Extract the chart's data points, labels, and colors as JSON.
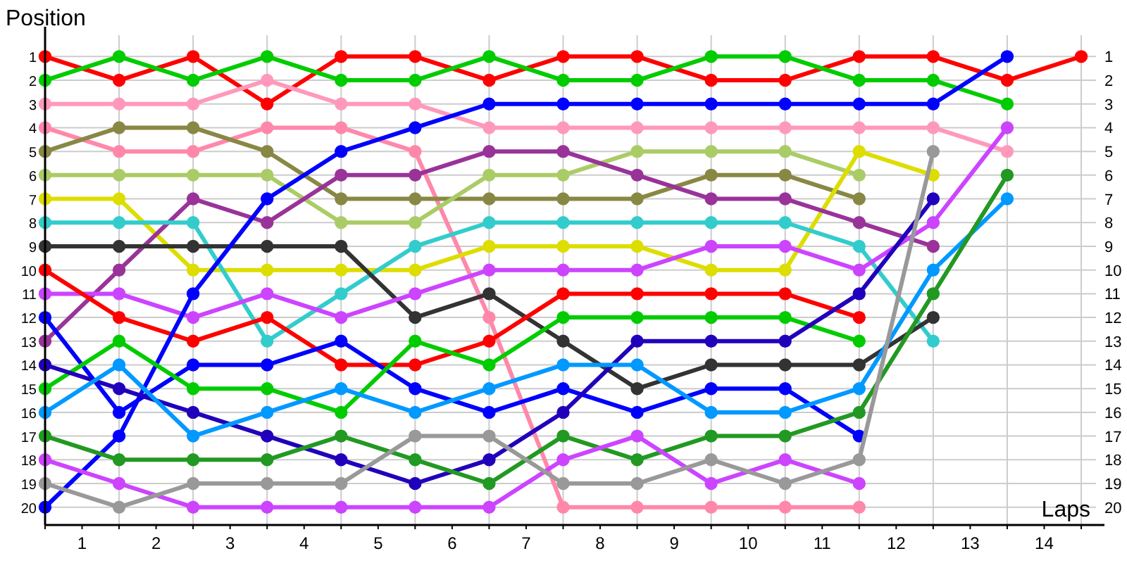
{
  "chart_data": {
    "type": "line",
    "ylabel": "Position",
    "xlabel": "Laps",
    "x": [
      0,
      1,
      2,
      3,
      4,
      5,
      6,
      7,
      8,
      9,
      10,
      11,
      12,
      13,
      14
    ],
    "xlim": [
      0,
      14.2
    ],
    "xticks": [
      {
        "value": 0,
        "label": null
      },
      {
        "value": 0.5,
        "label": "1"
      },
      {
        "value": 1,
        "label": null
      },
      {
        "value": 1.5,
        "label": "2"
      },
      {
        "value": 2,
        "label": null
      },
      {
        "value": 2.5,
        "label": "3"
      },
      {
        "value": 3,
        "label": null
      },
      {
        "value": 3.5,
        "label": "4"
      },
      {
        "value": 4,
        "label": null
      },
      {
        "value": 4.5,
        "label": "5"
      },
      {
        "value": 5,
        "label": null
      },
      {
        "value": 5.5,
        "label": "6"
      },
      {
        "value": 6,
        "label": null
      },
      {
        "value": 6.5,
        "label": "7"
      },
      {
        "value": 7,
        "label": null
      },
      {
        "value": 7.5,
        "label": "8"
      },
      {
        "value": 8,
        "label": null
      },
      {
        "value": 8.5,
        "label": "9"
      },
      {
        "value": 9,
        "label": null
      },
      {
        "value": 9.5,
        "label": "10"
      },
      {
        "value": 10,
        "label": null
      },
      {
        "value": 10.5,
        "label": "11"
      },
      {
        "value": 11,
        "label": null
      },
      {
        "value": 11.5,
        "label": "12"
      },
      {
        "value": 12,
        "label": null
      },
      {
        "value": 12.5,
        "label": "13"
      },
      {
        "value": 13,
        "label": null
      },
      {
        "value": 13.5,
        "label": "14"
      },
      {
        "value": 14,
        "label": null
      }
    ],
    "ylim": [
      20.75,
      0.1
    ],
    "yticks": [
      1,
      2,
      3,
      4,
      5,
      6,
      7,
      8,
      9,
      10,
      11,
      12,
      13,
      14,
      15,
      16,
      17,
      18,
      19,
      20
    ],
    "y2lim": [
      20.75,
      0.1
    ],
    "y2ticks": [
      1,
      2,
      3,
      4,
      5,
      6,
      7,
      8,
      9,
      10,
      11,
      12,
      13,
      14,
      15,
      16,
      17,
      18,
      19,
      20
    ],
    "grid": true,
    "marker": "circle",
    "line_style": "solid",
    "series": [
      {
        "color": "#ff0000",
        "values": [
          1,
          2,
          1,
          3,
          1,
          1,
          2,
          1,
          1,
          2,
          2,
          1,
          1,
          2,
          1
        ]
      },
      {
        "color": "#00cc00",
        "values": [
          2,
          1,
          2,
          1,
          2,
          2,
          1,
          2,
          2,
          1,
          1,
          2,
          2,
          3,
          null
        ]
      },
      {
        "color": "#ff99bb",
        "values": [
          3,
          3,
          3,
          2,
          3,
          3,
          4,
          4,
          4,
          4,
          4,
          4,
          4,
          5,
          null
        ]
      },
      {
        "color": "#ff88aa",
        "values": [
          4,
          5,
          5,
          4,
          4,
          5,
          12,
          20,
          20,
          20,
          20,
          20,
          null,
          null,
          null
        ]
      },
      {
        "color": "#888844",
        "values": [
          5,
          4,
          4,
          5,
          7,
          7,
          7,
          7,
          7,
          6,
          6,
          7,
          null,
          null,
          null
        ]
      },
      {
        "color": "#aacc66",
        "values": [
          6,
          6,
          6,
          6,
          8,
          8,
          6,
          6,
          5,
          5,
          5,
          6,
          null,
          null,
          null
        ]
      },
      {
        "color": "#dddd00",
        "values": [
          7,
          7,
          10,
          10,
          10,
          10,
          9,
          9,
          9,
          10,
          10,
          5,
          6,
          null,
          null
        ]
      },
      {
        "color": "#993399",
        "values": [
          13,
          10,
          7,
          8,
          6,
          6,
          5,
          5,
          6,
          7,
          7,
          8,
          9,
          null,
          null
        ]
      },
      {
        "color": "#33cccc",
        "values": [
          8,
          8,
          8,
          13,
          11,
          9,
          8,
          8,
          8,
          8,
          8,
          9,
          13,
          null,
          null
        ]
      },
      {
        "color": "#333333",
        "values": [
          9,
          9,
          9,
          9,
          9,
          12,
          11,
          13,
          15,
          14,
          14,
          14,
          12,
          null,
          null
        ]
      },
      {
        "color": "#cc44ff",
        "values": [
          11,
          11,
          12,
          11,
          12,
          11,
          10,
          10,
          10,
          9,
          9,
          10,
          8,
          4,
          null
        ]
      },
      {
        "color": "#ff0000",
        "values": [
          10,
          12,
          13,
          12,
          14,
          14,
          13,
          11,
          11,
          11,
          11,
          12,
          null,
          null,
          null
        ]
      },
      {
        "color": "#0000ff",
        "values": [
          20,
          17,
          11,
          7,
          5,
          4,
          3,
          3,
          3,
          3,
          3,
          3,
          3,
          1,
          null
        ]
      },
      {
        "color": "#0000ff",
        "values": [
          12,
          16,
          14,
          14,
          13,
          15,
          16,
          15,
          16,
          15,
          15,
          17,
          null,
          null,
          null
        ]
      },
      {
        "color": "#00cc00",
        "values": [
          15,
          13,
          15,
          15,
          16,
          13,
          14,
          12,
          12,
          12,
          12,
          13,
          null,
          null,
          null
        ]
      },
      {
        "color": "#2200bb",
        "values": [
          14,
          15,
          16,
          17,
          18,
          19,
          18,
          16,
          13,
          13,
          13,
          11,
          7,
          null,
          null
        ]
      },
      {
        "color": "#0099ff",
        "values": [
          16,
          14,
          17,
          16,
          15,
          16,
          15,
          14,
          14,
          16,
          16,
          15,
          10,
          7,
          null
        ]
      },
      {
        "color": "#229922",
        "values": [
          17,
          18,
          18,
          18,
          17,
          18,
          19,
          17,
          18,
          17,
          17,
          16,
          11,
          6,
          null
        ]
      },
      {
        "color": "#cc44ff",
        "values": [
          18,
          19,
          20,
          20,
          20,
          20,
          20,
          18,
          17,
          19,
          18,
          19,
          null,
          null,
          null
        ]
      },
      {
        "color": "#999999",
        "values": [
          19,
          20,
          19,
          19,
          19,
          17,
          17,
          19,
          19,
          18,
          19,
          18,
          5,
          null,
          null
        ]
      }
    ]
  }
}
